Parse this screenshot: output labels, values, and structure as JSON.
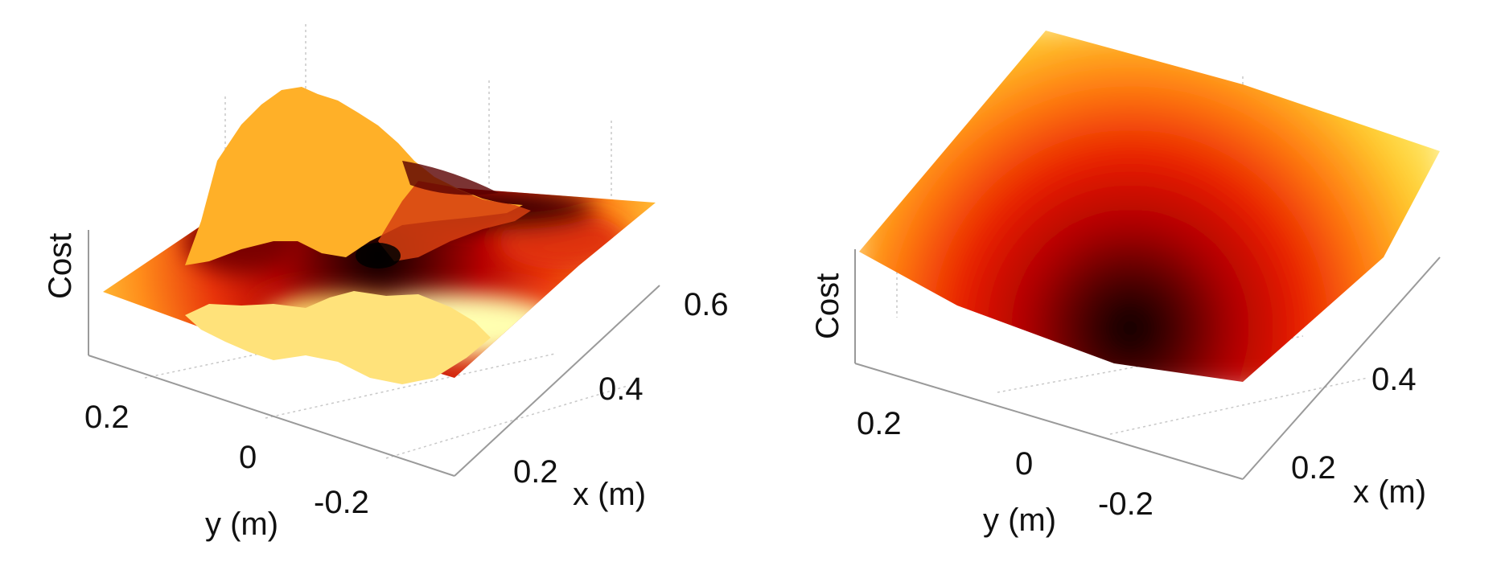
{
  "chart_data": [
    {
      "type": "surface",
      "colormap": "hot",
      "zlabel": "Cost",
      "xlabel": "x (m)",
      "ylabel": "y (m)",
      "x_ticks": [
        "0.2",
        "0.4",
        "0.6"
      ],
      "y_ticks": [
        "0.2",
        "0",
        "-0.2"
      ],
      "xlim": [
        0.1,
        0.7
      ],
      "ylim": [
        -0.3,
        0.3
      ],
      "surface": "noisy",
      "minimum": {
        "x": 0.45,
        "y": 0.0
      },
      "grid": true
    },
    {
      "type": "surface",
      "colormap": "hot",
      "zlabel": "Cost",
      "xlabel": "x (m)",
      "ylabel": "y (m)",
      "x_ticks": [
        "0.2",
        "0.4"
      ],
      "y_ticks": [
        "0.2",
        "0",
        "-0.2"
      ],
      "xlim": [
        0.1,
        0.55
      ],
      "ylim": [
        -0.3,
        0.3
      ],
      "surface": "smooth bowl",
      "minimum": {
        "x": 0.3,
        "y": -0.1
      },
      "grid": true
    }
  ]
}
